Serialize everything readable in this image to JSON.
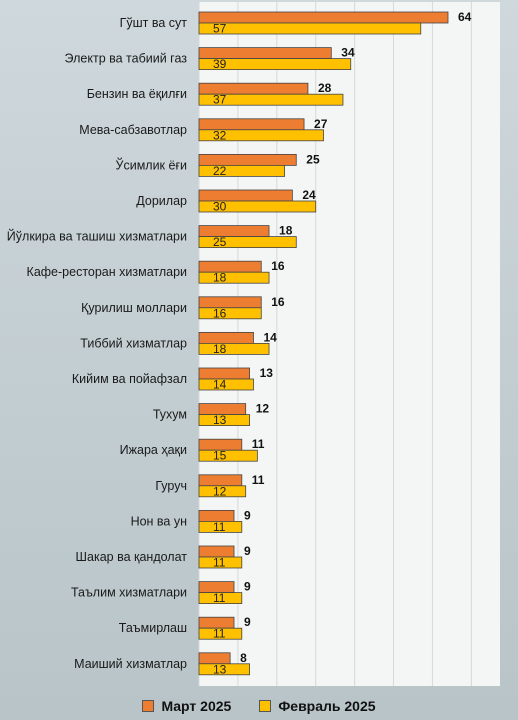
{
  "chart_data": {
    "type": "bar",
    "orientation": "horizontal",
    "categories": [
      "Гўшт ва сут",
      "Электр ва табиий газ",
      "Бензин ва ёқилғи",
      "Мева-сабзавотлар",
      "Ўсимлик ёғи",
      "Дорилар",
      "Йўлкира ва ташиш хизматлари",
      "Кафе-ресторан хизматлари",
      "Қурилиш моллари",
      "Тиббий хизматлар",
      "Кийим ва пойафзал",
      "Тухум",
      "Ижара ҳақи",
      "Гуруч",
      "Нон ва ун",
      "Шакар ва қандолат",
      "Таълим хизматлари",
      "Таъмирлаш",
      "Маиший хизматлар"
    ],
    "series": [
      {
        "name": "Март 2025",
        "color": "#ed7d31",
        "values": [
          64,
          34,
          28,
          27,
          25,
          24,
          18,
          16,
          16,
          14,
          13,
          12,
          11,
          11,
          9,
          9,
          9,
          9,
          8
        ]
      },
      {
        "name": "Февраль 2025",
        "color": "#ffc000",
        "values": [
          57,
          39,
          37,
          32,
          22,
          30,
          25,
          18,
          16,
          18,
          14,
          13,
          15,
          12,
          11,
          11,
          11,
          11,
          13
        ]
      }
    ],
    "xlim": [
      0,
      70
    ],
    "grid": true,
    "legend": "bottom"
  }
}
